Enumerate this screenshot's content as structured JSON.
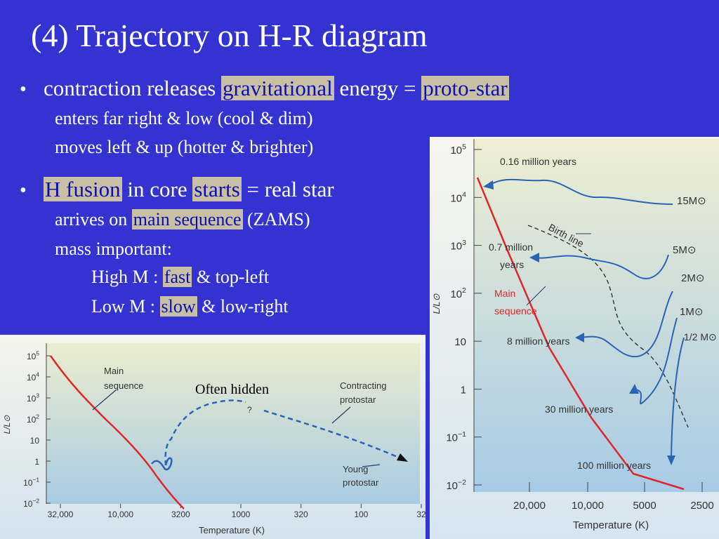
{
  "slide": {
    "title": "(4)  Trajectory on H-R diagram",
    "bullet_glyph": "•",
    "bullet1": {
      "pre": "contraction releases ",
      "hl1": "gravitational",
      "mid": " energy = ",
      "hl2": "proto-star",
      "sub1": "enters far right & low (cool & dim)",
      "sub2": "moves left & up (hotter & brighter)"
    },
    "bullet2": {
      "hl1": "H fusion",
      "mid1": " in core ",
      "hl2": "starts",
      "post": " = real star",
      "sub1_pre": "arrives on ",
      "sub1_hl": "main sequence",
      "sub1_post": " (ZAMS)",
      "sub2": "mass important:",
      "high_pre": "High M : ",
      "high_hl": "fast",
      "high_post": " & top-left",
      "low_pre": "Low M : ",
      "low_hl": "slow",
      "low_post": " & low-right"
    }
  },
  "colors": {
    "background": "#3433d1",
    "highlight_bg": "#c8bfa4",
    "highlight_text": "#0b0fb3",
    "main_sequence": "#e0262a",
    "track": "#2a64b4",
    "annotation": "#2a3a6a"
  },
  "left_chart": {
    "ylabel": "L/L⊙",
    "xlabel": "Temperature (K)",
    "y_ticks": [
      "10^5",
      "10^4",
      "10^3",
      "10^2",
      "10",
      "1",
      "10^-1",
      "10^-2"
    ],
    "x_ticks": [
      "32,000",
      "10,000",
      "3200",
      "1000",
      "320",
      "100",
      "32"
    ],
    "labels": {
      "main_sequence_1": "Main",
      "main_sequence_2": "sequence",
      "often_hidden": "Often hidden",
      "question": "?",
      "contracting_1": "Contracting",
      "contracting_2": "protostar",
      "young_1": "Young",
      "young_2": "protostar"
    }
  },
  "right_chart": {
    "ylabel": "L/L⊙",
    "xlabel": "Temperature (K)",
    "y_ticks": [
      "10^5",
      "10^4",
      "10^3",
      "10^2",
      "10",
      "1",
      "10^-1",
      "10^-2"
    ],
    "x_ticks": [
      "20,000",
      "10,000",
      "5000",
      "2500"
    ],
    "labels": {
      "t016": "0.16 million years",
      "t07a": "0.7 million",
      "t07b": "years",
      "t8": "8 million years",
      "t30": "30 million years",
      "t100": "100 million years",
      "birth_line": "Birth line",
      "main_sequence_1": "Main",
      "main_sequence_2": "sequence"
    },
    "masses": [
      "15M⊙",
      "5M⊙",
      "2M⊙",
      "1M⊙",
      "1/2 M⊙"
    ]
  }
}
